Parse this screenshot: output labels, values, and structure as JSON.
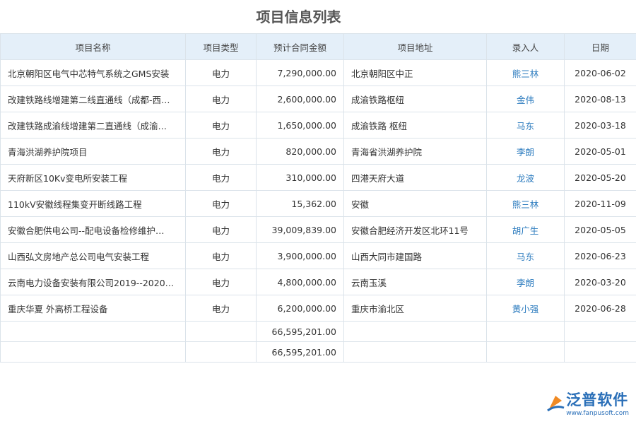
{
  "header": {
    "title": "项目信息列表"
  },
  "table": {
    "columns": [
      "项目名称",
      "项目类型",
      "预计合同金额",
      "项目地址",
      "录入人",
      "日期"
    ],
    "rows": [
      [
        "北京朝阳区电气中芯特气系统之GMS安装",
        "电力",
        "7,290,000.00",
        "北京朝阳区中正",
        "熊三林",
        "2020-06-02"
      ],
      [
        "改建铁路线增建第二线直通线（成都-西…",
        "电力",
        "2,600,000.00",
        "成渝铁路枢纽",
        "金伟",
        "2020-08-13"
      ],
      [
        "改建铁路成渝线增建第二直通线（成渝…",
        "电力",
        "1,650,000.00",
        "成渝铁路 枢纽",
        "马东",
        "2020-03-18"
      ],
      [
        "青海洪湖养护院项目",
        "电力",
        "820,000.00",
        "青海省洪湖养护院",
        "李朗",
        "2020-05-01"
      ],
      [
        "天府新区10Kv变电所安装工程",
        "电力",
        "310,000.00",
        "四港天府大道",
        "龙波",
        "2020-05-20"
      ],
      [
        "110kV安徽线程集变开断线路工程",
        "电力",
        "15,362.00",
        "安徽",
        "熊三林",
        "2020-11-09"
      ],
      [
        "安徽合肥供电公司--配电设备检修维护…",
        "电力",
        "39,009,839.00",
        "安徽合肥经济开发区北环11号",
        "胡广生",
        "2020-05-05"
      ],
      [
        "山西弘文房地产总公司电气安装工程",
        "电力",
        "3,900,000.00",
        "山西大同市建国路",
        "马东",
        "2020-06-23"
      ],
      [
        "云南电力设备安装有限公司2019--2020…",
        "电力",
        "4,800,000.00",
        "云南玉溪",
        "李朗",
        "2020-03-20"
      ],
      [
        "重庆华夏 外高桥工程设备",
        "电力",
        "6,200,000.00",
        "重庆市渝北区",
        "黄小强",
        "2020-06-28"
      ]
    ],
    "totals": [
      "66,595,201.00",
      "66,595,201.00"
    ]
  },
  "logo": {
    "name": "泛普软件",
    "url": "www.fanpusoft.com"
  }
}
